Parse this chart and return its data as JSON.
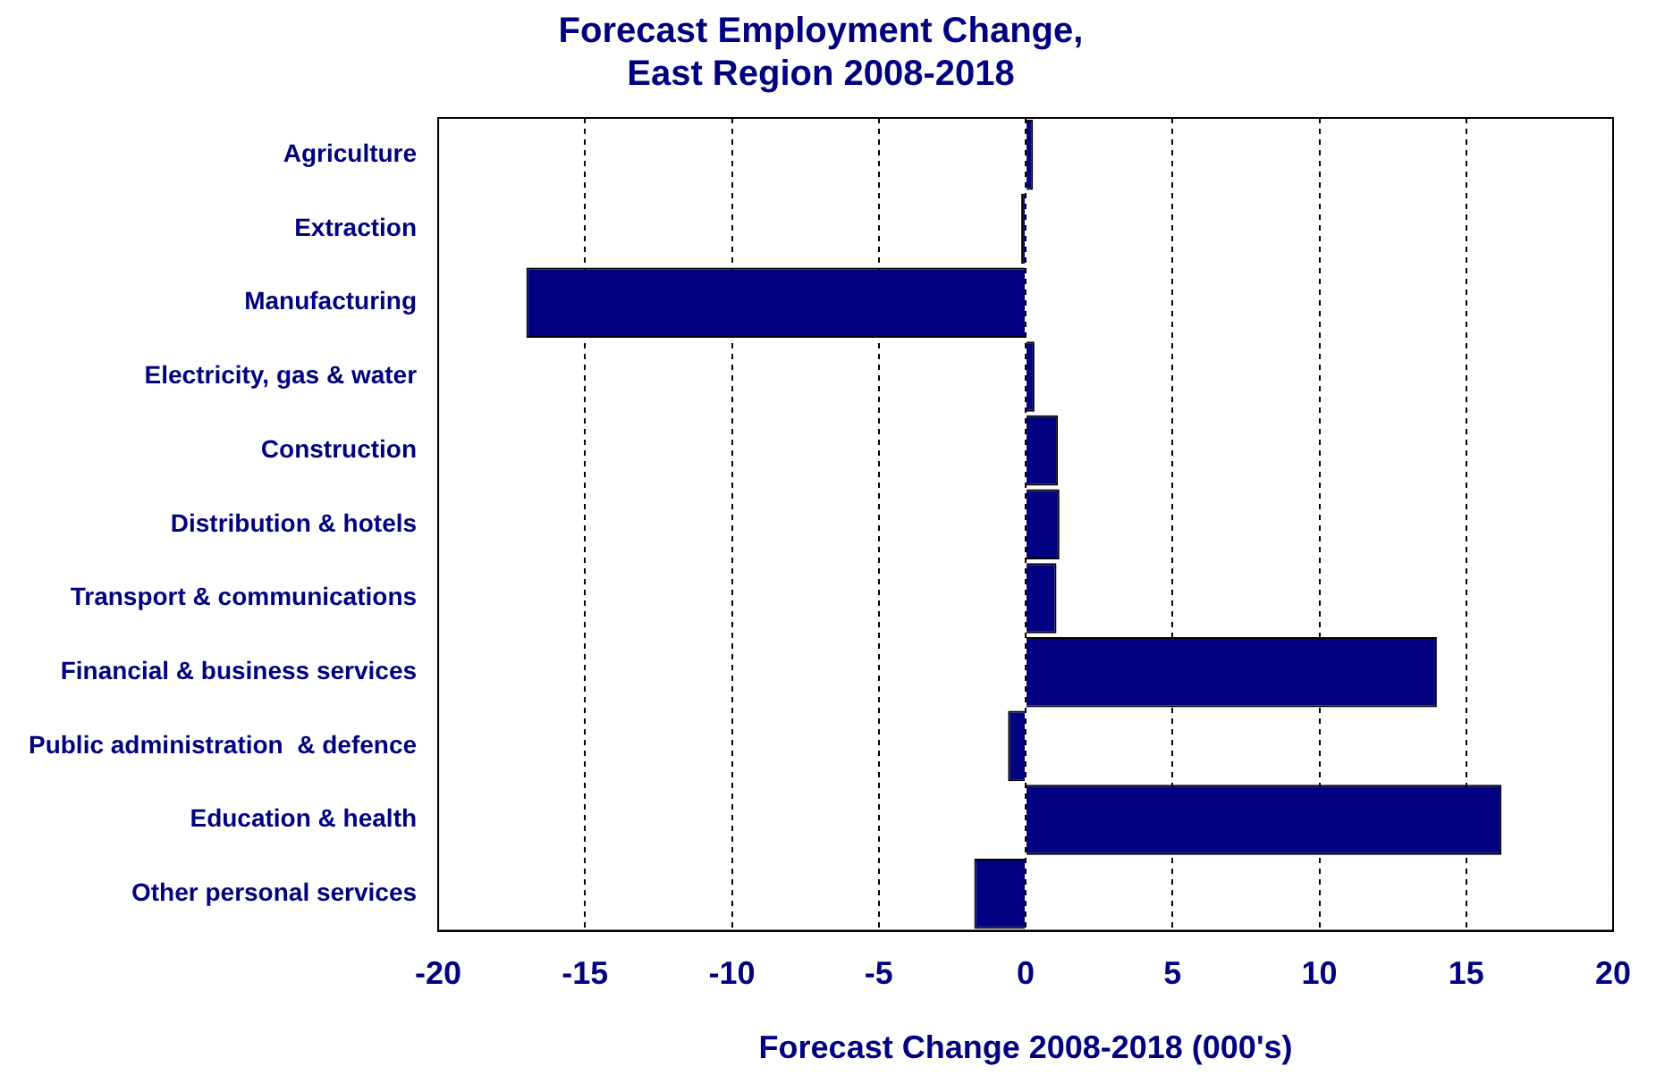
{
  "chart_data": {
    "type": "bar",
    "orientation": "horizontal",
    "title": "Forecast Employment Change,\nEast Region 2008-2018",
    "xlabel": "Forecast Change 2008-2018 (000's)",
    "categories": [
      "Agriculture",
      "Extraction",
      "Manufacturing",
      "Electricity, gas & water",
      "Construction",
      "Distribution & hotels",
      "Transport & communications",
      "Financial & business services",
      "Public administration  & defence",
      "Education & health",
      "Other personal services"
    ],
    "values": [
      0.25,
      -0.15,
      -17,
      0.3,
      1.1,
      1.15,
      1.05,
      14,
      -0.6,
      16.2,
      -1.75
    ],
    "color": "#000080",
    "xlim": [
      -20,
      20
    ],
    "xticks": [
      -20,
      -15,
      -10,
      -5,
      0,
      5,
      10,
      15,
      20
    ],
    "grid": "x",
    "legend": false
  }
}
